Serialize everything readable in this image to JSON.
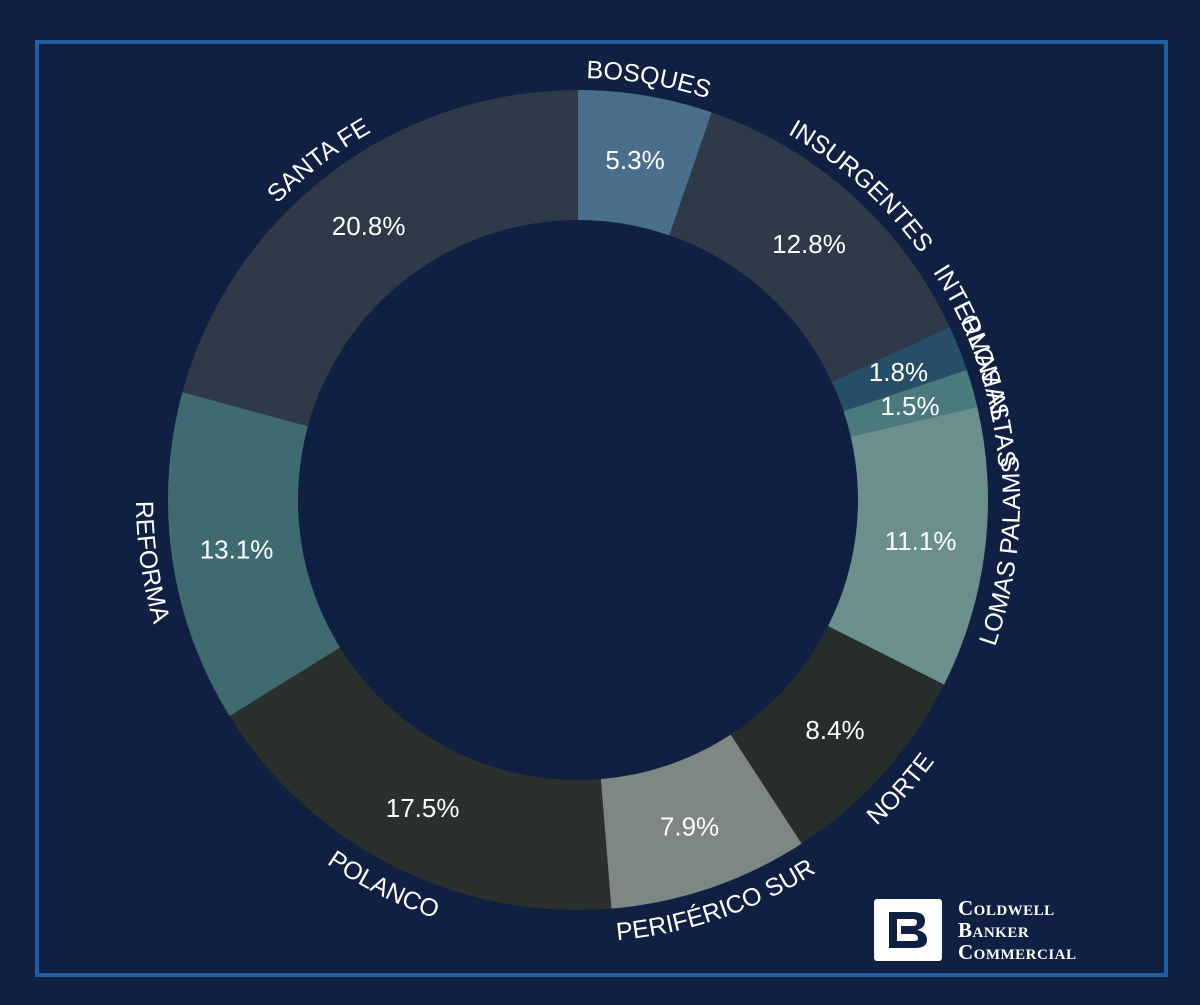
{
  "chart_data": {
    "type": "donut",
    "title": "",
    "categories": [
      "BOSQUES",
      "INSURGENTES",
      "INTERLOMAS",
      "LOMAS ALTAS",
      "LOMAS PALAMS",
      "NORTE",
      "PERIFÉRICO SUR",
      "POLANCO",
      "REFORMA",
      "SANTA FE"
    ],
    "values": [
      5.3,
      12.8,
      1.8,
      1.5,
      11.1,
      8.4,
      7.9,
      17.5,
      13.1,
      20.8
    ],
    "value_labels": [
      "5.3%",
      "12.8%",
      "1.8%",
      "1.5%",
      "11.1%",
      "8.4%",
      "7.9%",
      "17.5%",
      "13.1%",
      "20.8%"
    ],
    "colors": [
      "#4a6f8c",
      "#2e3a47",
      "#264e66",
      "#4a7a7c",
      "#6a8f8c",
      "#262d2b",
      "#7e8781",
      "#2b302d",
      "#3f6b70",
      "#2e3a47"
    ],
    "unit": "%",
    "legend": "none"
  },
  "theme": {
    "background": "#0f2043",
    "frame": "#1f5ea3"
  },
  "logo": {
    "line1": "Coldwell",
    "line2": "Banker",
    "line3": "Commercial"
  }
}
